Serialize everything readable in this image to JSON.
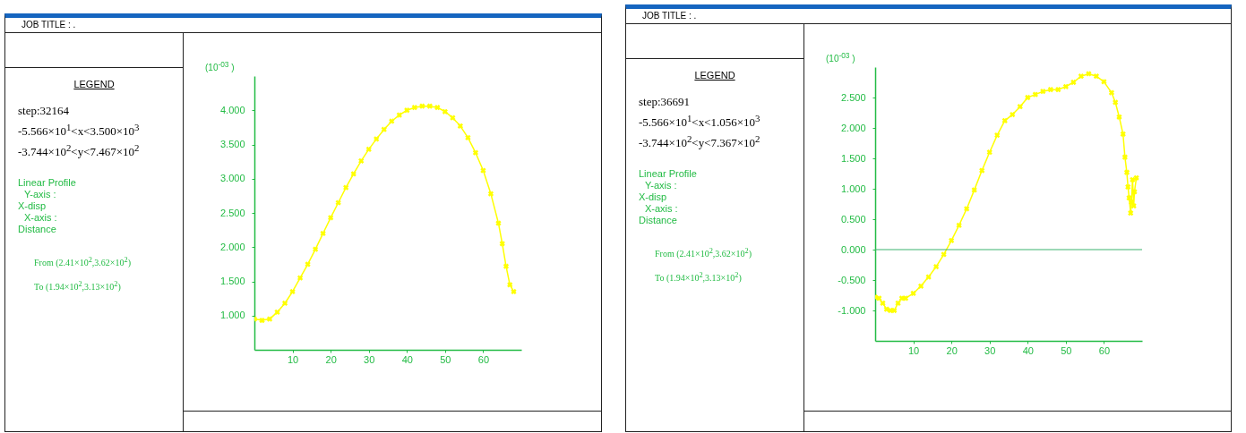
{
  "chart_data": [
    {
      "type": "line",
      "ylabel": "(10$^{-03}$ )",
      "annotations": [
        "JOB TITLE : .",
        "LEGEND",
        "step:32164",
        "-5.566×10$^{1}$<x<3.500×10$^{3}$",
        "-3.744×10$^{2}$<y<7.467×10$^{2}$",
        "Linear Profile",
        "Y-axis :",
        "X-disp",
        "X-axis :",
        "Distance",
        "From (2.41×10$^{2}$,3.62×10$^{2}$)",
        "To (1.94×10$^{2}$,3.13×10$^{2}$)"
      ],
      "x": [
        0,
        2,
        4,
        6,
        8,
        10,
        12,
        14,
        16,
        18,
        20,
        22,
        24,
        26,
        28,
        30,
        32,
        34,
        36,
        38,
        40,
        42,
        44,
        46,
        48,
        50,
        52,
        54,
        56,
        58,
        60,
        62,
        64,
        65,
        66,
        67,
        68
      ],
      "series": [
        {
          "color": "#ffff00",
          "values": [
            0.95,
            0.93,
            0.95,
            1.05,
            1.18,
            1.35,
            1.55,
            1.75,
            1.97,
            2.2,
            2.43,
            2.65,
            2.87,
            3.07,
            3.26,
            3.43,
            3.58,
            3.72,
            3.84,
            3.93,
            4.0,
            4.04,
            4.06,
            4.06,
            4.04,
            3.98,
            3.89,
            3.77,
            3.6,
            3.38,
            3.12,
            2.78,
            2.35,
            2.05,
            1.72,
            1.45,
            1.35
          ]
        }
      ],
      "xlim": [
        0,
        70
      ],
      "xticks": [
        10,
        20,
        30,
        40,
        50,
        60
      ],
      "ylim": [
        0.5,
        4.5
      ],
      "yticks": [
        {
          "value": 1,
          "label": "1.000"
        },
        {
          "value": 1.5,
          "label": "1.500"
        },
        {
          "value": 2,
          "label": "2.000"
        },
        {
          "value": 2.5,
          "label": "2.500"
        },
        {
          "value": 3,
          "label": "3.000"
        },
        {
          "value": 3.5,
          "label": "3.500"
        },
        {
          "value": 4,
          "label": "4.000"
        }
      ],
      "marker": "cross",
      "grid": false
    },
    {
      "type": "line",
      "ylabel": "(10$^{-03}$ )",
      "annotations": [
        "JOB TITLE : .",
        "LEGEND",
        "step:36691",
        "-5.566×10$^{1}$<x<1.056×10$^{3}$",
        "-3.744×10$^{2}$<y<7.367×10$^{2}$",
        "Linear Profile",
        "Y-axis :",
        "X-disp",
        "X-axis :",
        "Distance",
        "From (2.41×10$^{2}$,3.62×10$^{2}$)",
        "To (1.94×10$^{2}$,3.13×10$^{2}$)"
      ],
      "x": [
        0,
        1,
        2,
        3,
        4,
        5,
        6,
        7,
        8,
        10,
        12,
        14,
        16,
        18,
        20,
        22,
        24,
        26,
        28,
        30,
        32,
        34,
        36,
        38,
        40,
        42,
        44,
        46,
        48,
        50,
        52,
        54,
        56,
        58,
        60,
        62,
        63,
        64,
        65,
        65.5,
        66,
        66.3,
        66.6,
        67,
        67.2,
        67.5,
        67.8,
        68,
        68.5
      ],
      "series": [
        {
          "color": "#ffff00",
          "values": [
            -0.78,
            -0.8,
            -0.88,
            -0.98,
            -1.0,
            -1.0,
            -0.88,
            -0.8,
            -0.8,
            -0.72,
            -0.6,
            -0.45,
            -0.28,
            -0.08,
            0.15,
            0.4,
            0.67,
            0.98,
            1.3,
            1.6,
            1.88,
            2.12,
            2.22,
            2.35,
            2.5,
            2.55,
            2.6,
            2.63,
            2.63,
            2.68,
            2.75,
            2.85,
            2.89,
            2.85,
            2.76,
            2.58,
            2.42,
            2.18,
            1.9,
            1.52,
            1.27,
            1.03,
            0.85,
            0.6,
            0.78,
            1.15,
            0.72,
            0.95,
            1.18
          ]
        }
      ],
      "xlim": [
        0,
        70
      ],
      "xticks": [
        10,
        20,
        30,
        40,
        50,
        60
      ],
      "ylim": [
        -1.5,
        3.0
      ],
      "yticks": [
        {
          "value": -1,
          "label": "-1.000"
        },
        {
          "value": -0.5,
          "label": "-0.500"
        },
        {
          "value": 0,
          "label": "0.000"
        },
        {
          "value": 0.5,
          "label": "0.500"
        },
        {
          "value": 1,
          "label": "1.000"
        },
        {
          "value": 1.5,
          "label": "1.500"
        },
        {
          "value": 2,
          "label": "2.000"
        },
        {
          "value": 2.5,
          "label": "2.500"
        }
      ],
      "ref_lines": [
        {
          "axis": "y",
          "value": 0,
          "color": "#3cb371"
        }
      ],
      "marker": "cross",
      "grid": false
    }
  ]
}
